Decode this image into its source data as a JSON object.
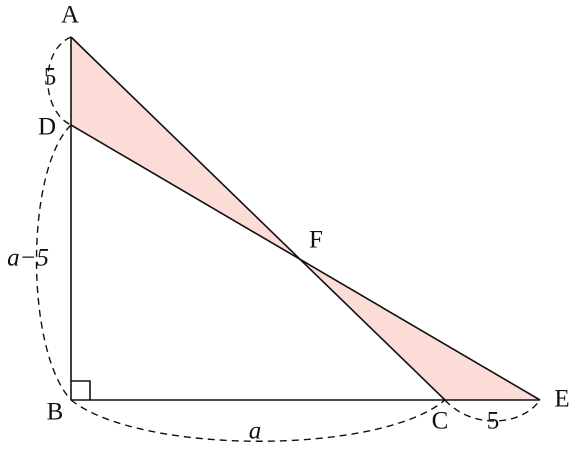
{
  "points": [
    {
      "label": "A"
    },
    {
      "label": "D"
    },
    {
      "label": "B"
    },
    {
      "label": "C"
    },
    {
      "label": "E"
    },
    {
      "label": "F"
    }
  ],
  "measures": [
    {
      "label": "5"
    },
    {
      "label": "a−5"
    },
    {
      "label": "a"
    },
    {
      "label": "5"
    }
  ]
}
